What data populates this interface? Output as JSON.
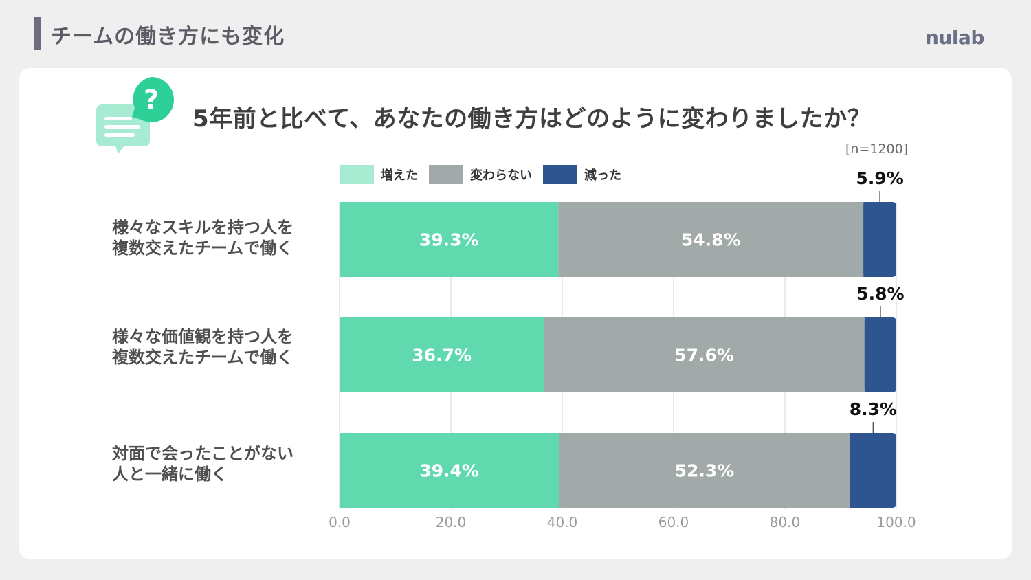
{
  "header": {
    "section_title": "チームの働き方にも変化",
    "brand": "nulab"
  },
  "question": "5年前と比べて、あなたの働き方はどのように変わりましたか？",
  "sample_size": "[n=1200]",
  "icon": {
    "name": "question-speech-bubble-icon",
    "mark": "?"
  },
  "colors": {
    "increased": "#61d9ae",
    "unchanged": "#a2a9a9",
    "decreased": "#2e5590",
    "background": "#efefef",
    "card": "#ffffff"
  },
  "chart_data": {
    "type": "bar",
    "orientation": "horizontal",
    "stacked": true,
    "categories": [
      "様々なスキルを持つ人を\n複数交えたチームで働く",
      "様々な価値観を持つ人を\n複数交えたチームで働く",
      "対面で会ったことがない\n人と一緒に働く"
    ],
    "series": [
      {
        "name": "増えた",
        "values": [
          39.3,
          36.7,
          39.4
        ],
        "labels": [
          "39.3%",
          "36.7%",
          "39.4%"
        ]
      },
      {
        "name": "変わらない",
        "values": [
          54.8,
          57.6,
          52.3
        ],
        "labels": [
          "54.8%",
          "57.6%",
          "52.3%"
        ]
      },
      {
        "name": "減った",
        "values": [
          5.9,
          5.8,
          8.3
        ],
        "labels": [
          "5.9%",
          "5.8%",
          "8.3%"
        ]
      }
    ],
    "xlim": [
      0,
      100
    ],
    "xticks": [
      "0.0",
      "20.0",
      "40.0",
      "60.0",
      "80.0",
      "100.0"
    ],
    "grid": true,
    "legend_position": "top"
  }
}
